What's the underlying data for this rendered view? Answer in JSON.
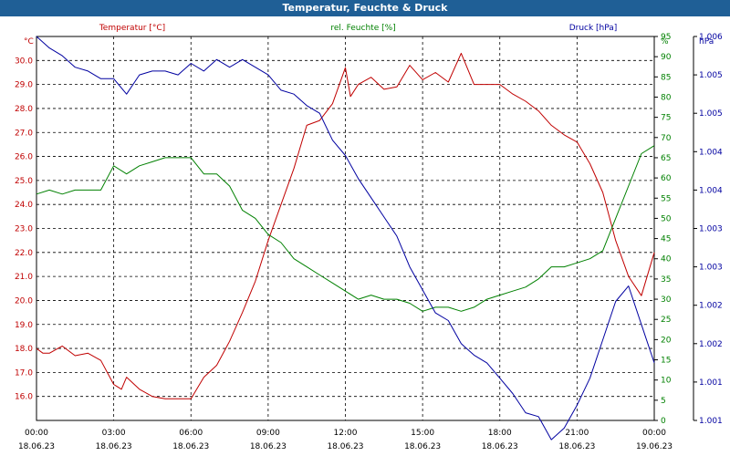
{
  "window": {
    "title": "Temperatur, Feuchte & Druck"
  },
  "chart_data": {
    "type": "line",
    "title": "Temperatur, Feuchte & Druck",
    "grid": true,
    "legend": "top",
    "x_ticks": [
      {
        "time": "00:00",
        "date": "18.06.23"
      },
      {
        "time": "03:00",
        "date": "18.06.23"
      },
      {
        "time": "06:00",
        "date": "18.06.23"
      },
      {
        "time": "09:00",
        "date": "18.06.23"
      },
      {
        "time": "12:00",
        "date": "18.06.23"
      },
      {
        "time": "15:00",
        "date": "18.06.23"
      },
      {
        "time": "18:00",
        "date": "18.06.23"
      },
      {
        "time": "21:00",
        "date": "18.06.23"
      },
      {
        "time": "00:00",
        "date": "19.06.23"
      }
    ],
    "xlim": [
      0,
      24
    ],
    "axes": {
      "temperature": {
        "label": "Temperatur [°C]",
        "unit": "°C",
        "color": "#c00000",
        "ylim": [
          15.0,
          31.0
        ],
        "ticks": [
          "16.0",
          "17.0",
          "18.0",
          "19.0",
          "20.0",
          "21.0",
          "22.0",
          "23.0",
          "24.0",
          "25.0",
          "26.0",
          "27.0",
          "28.0",
          "29.0",
          "30.0"
        ]
      },
      "humidity": {
        "label": "rel. Feuchte [%]",
        "unit": "%",
        "color": "#008000",
        "ylim": [
          0,
          95
        ],
        "ticks": [
          "0",
          "5",
          "10",
          "15",
          "20",
          "25",
          "30",
          "35",
          "40",
          "45",
          "50",
          "55",
          "60",
          "65",
          "70",
          "75",
          "80",
          "85",
          "90",
          "95"
        ]
      },
      "pressure": {
        "label": "Druck [hPa]",
        "unit": "hPa",
        "color": "#0000a0",
        "ylim": [
          1001.0,
          1006.0
        ],
        "ticks": [
          "1.001",
          "1.001",
          "1.002",
          "1.002",
          "1.003",
          "1.003",
          "1.004",
          "1.004",
          "1.005",
          "1.005",
          "1.006"
        ]
      }
    },
    "series": [
      {
        "name": "Temperatur [°C]",
        "axis": "temperature",
        "color": "#c00000",
        "x": [
          0,
          0.25,
          0.5,
          1,
          1.5,
          2,
          2.5,
          3,
          3.3,
          3.5,
          4,
          4.5,
          5,
          5.5,
          6,
          6.5,
          7,
          7.5,
          8,
          8.5,
          9,
          9.5,
          10,
          10.5,
          11,
          11.5,
          12,
          12.2,
          12.5,
          13,
          13.5,
          14,
          14.5,
          15,
          15.5,
          16,
          16.5,
          17,
          17.5,
          18,
          18.5,
          19,
          19.5,
          20,
          20.5,
          21,
          21.5,
          22,
          22.5,
          23,
          23.5,
          24
        ],
        "y": [
          18.0,
          17.8,
          17.8,
          18.1,
          17.7,
          17.8,
          17.5,
          16.5,
          16.3,
          16.8,
          16.3,
          16.0,
          15.9,
          15.9,
          15.9,
          16.8,
          17.3,
          18.3,
          19.5,
          20.8,
          22.5,
          24.0,
          25.5,
          27.3,
          27.5,
          28.2,
          29.7,
          28.5,
          29.0,
          29.3,
          28.8,
          28.9,
          29.8,
          29.2,
          29.5,
          29.1,
          30.3,
          29.0,
          29.0,
          29.0,
          28.6,
          28.3,
          27.9,
          27.3,
          26.9,
          26.6,
          25.7,
          24.5,
          22.5,
          21.0,
          20.2,
          22.0
        ]
      },
      {
        "name": "rel. Feuchte [%]",
        "axis": "humidity",
        "color": "#008000",
        "x": [
          0,
          0.5,
          1,
          1.5,
          2,
          2.5,
          3,
          3.5,
          4,
          4.5,
          5,
          5.5,
          6,
          6.5,
          7,
          7.5,
          8,
          8.5,
          9,
          9.5,
          10,
          10.5,
          11,
          11.5,
          12,
          12.5,
          13,
          13.5,
          14,
          14.5,
          15,
          15.5,
          16,
          16.5,
          17,
          17.5,
          18,
          18.5,
          19,
          19.5,
          20,
          20.5,
          21,
          21.5,
          22,
          22.5,
          23,
          23.5,
          24
        ],
        "y": [
          56,
          57,
          56,
          57,
          57,
          57,
          63,
          61,
          63,
          64,
          65,
          65,
          65,
          61,
          61,
          58,
          52,
          50,
          46,
          44,
          40,
          38,
          36,
          34,
          32,
          30,
          31,
          30,
          30,
          29,
          27,
          28,
          28,
          27,
          28,
          30,
          31,
          32,
          33,
          35,
          38,
          38,
          39,
          40,
          42,
          50,
          58,
          66,
          68
        ]
      },
      {
        "name": "Druck [hPa]",
        "axis": "pressure",
        "color": "#0000a0",
        "x": [
          0,
          0.5,
          1,
          1.5,
          2,
          2.5,
          3,
          3.5,
          4,
          4.5,
          5,
          5.5,
          6,
          6.5,
          7,
          7.5,
          8,
          8.5,
          9,
          9.5,
          10,
          10.5,
          11,
          11.5,
          12,
          12.5,
          13,
          13.5,
          14,
          14.5,
          15,
          15.5,
          16,
          16.5,
          17,
          17.5,
          18,
          18.5,
          19,
          19.5,
          20,
          20.5,
          21,
          21.5,
          22,
          22.5,
          23,
          23.5,
          24
        ],
        "y": [
          1006.0,
          1005.85,
          1005.75,
          1005.6,
          1005.55,
          1005.45,
          1005.45,
          1005.25,
          1005.5,
          1005.55,
          1005.55,
          1005.5,
          1005.65,
          1005.55,
          1005.7,
          1005.6,
          1005.7,
          1005.6,
          1005.5,
          1005.3,
          1005.25,
          1005.1,
          1005.0,
          1004.65,
          1004.45,
          1004.15,
          1003.9,
          1003.65,
          1003.4,
          1003.0,
          1002.7,
          1002.4,
          1002.3,
          1002.0,
          1001.85,
          1001.75,
          1001.55,
          1001.35,
          1001.1,
          1001.05,
          1000.75,
          1000.9,
          1001.2,
          1001.55,
          1002.05,
          1002.55,
          1002.75,
          1002.25,
          1001.75
        ]
      }
    ]
  }
}
